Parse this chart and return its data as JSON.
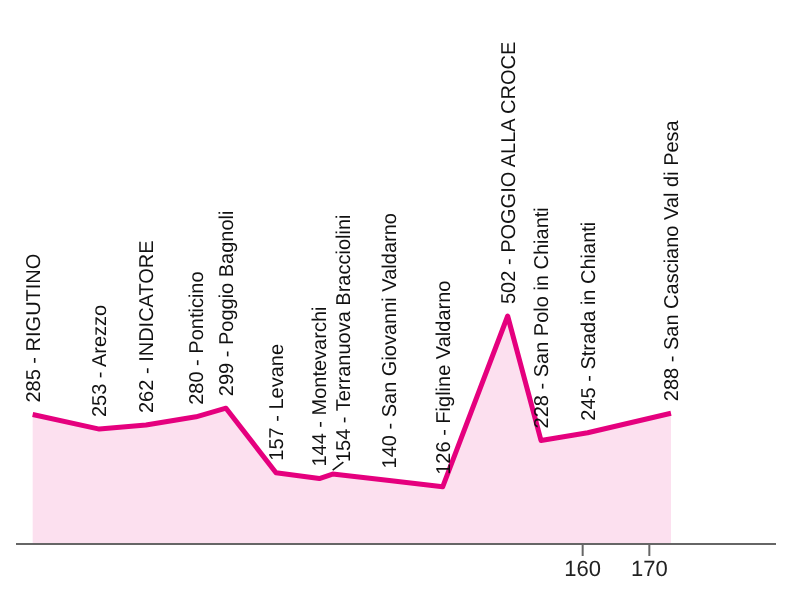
{
  "chart_data": {
    "type": "area",
    "x": [
      77.5,
      87.5,
      94.5,
      102,
      106.5,
      114,
      120.5,
      122.5,
      131,
      139,
      148.75,
      153.75,
      160.75,
      173.25
    ],
    "series": [
      {
        "color": "#e5007e",
        "values": [
          285,
          253,
          262,
          280,
          299,
          157,
          144,
          154,
          140,
          126,
          502,
          228,
          245,
          288
        ],
        "value_labels": [
          "285 - RIGUTINO",
          "253 - Arezzo",
          "262 - INDICATORE",
          "280 - Ponticino",
          "299 - Poggio Bagnoli",
          "157 - Levane",
          "144 - Montevarchi",
          "154 - Terranuova Bracciolini",
          "140 - San Giovanni Valdarno",
          "126 - Figline Valdarno",
          "502 - POGGIO ALLA CROCE",
          "228 - San Polo in Chianti",
          "245 - Strada in Chianti",
          "288 - San Casciano Val di Pesa"
        ]
      }
    ],
    "xlim": [
      75,
      189
    ],
    "xticks": [
      160,
      170
    ],
    "tick_labels": "x",
    "grid": false
  }
}
